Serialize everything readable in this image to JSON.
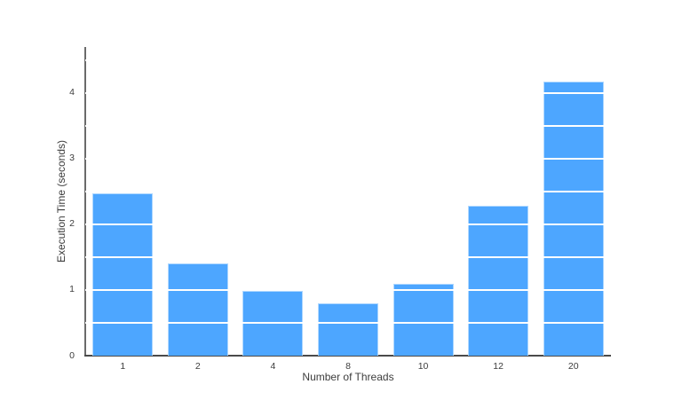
{
  "chart_data": {
    "type": "bar",
    "categories": [
      "1",
      "2",
      "4",
      "8",
      "10",
      "12",
      "20"
    ],
    "values": [
      2.47,
      1.4,
      0.98,
      0.8,
      1.1,
      2.28,
      4.17
    ],
    "title": "",
    "xlabel": "Number of Threads",
    "ylabel": "Execution Time (seconds)",
    "ylim": [
      0,
      4.7
    ],
    "yticks": [
      0,
      1,
      2,
      3,
      4
    ],
    "grid_step": 0.5,
    "grid_drawn_over_bars": true,
    "legend": "none",
    "colors": {
      "bar": "#4DA6FF",
      "gridline": "#FFFFFF",
      "axis_line_y": "#6A6A6A",
      "axis_line_x": "#4A4A4A",
      "tick_label": "#3D3D3D",
      "background": "#FFFFFF"
    }
  }
}
